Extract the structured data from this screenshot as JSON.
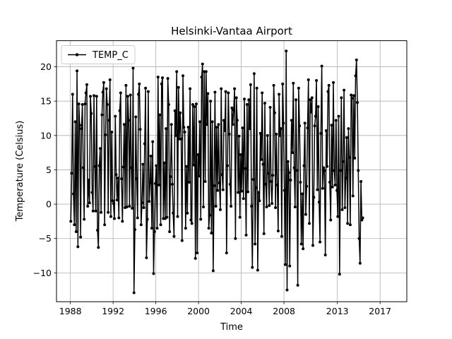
{
  "chart_data": {
    "type": "line",
    "title": "Helsinki-Vantaa Airport",
    "xlabel": "Time",
    "ylabel": "Temperature (Celsius)",
    "xlim": [
      1986.7,
      2019.5
    ],
    "ylim": [
      -14.2,
      23.8
    ],
    "x_ticks": [
      1988,
      1992,
      1996,
      2000,
      2004,
      2008,
      2013,
      2017
    ],
    "x_tick_labels": [
      "1988",
      "1992",
      "1996",
      "2000",
      "2004",
      "2008",
      "2013",
      "2017"
    ],
    "y_ticks": [
      -10,
      -5,
      0,
      5,
      10,
      15,
      20
    ],
    "y_tick_labels": [
      "−10",
      "−5",
      "0",
      "5",
      "10",
      "15",
      "20"
    ],
    "grid": true,
    "legend_position": "upper-left",
    "colors": {
      "series": "#000000",
      "grid": "#b0b0b0"
    },
    "series": [
      {
        "name": "TEMP_C",
        "x_start": 1988.04,
        "x_step": 0.0833333,
        "y": [
          -2.5,
          4.5,
          16.0,
          1.5,
          -3.0,
          12.0,
          -4.0,
          19.4,
          -6.2,
          14.6,
          11.5,
          -4.8,
          11.0,
          14.5,
          5.3,
          -2.2,
          14.6,
          16.2,
          17.4,
          -0.3,
          3.5,
          0.2,
          15.7,
          13.2,
          1.7,
          -1.0,
          15.8,
          5.5,
          -1.0,
          15.7,
          -3.8,
          -6.3,
          5.6,
          8.1,
          -1.2,
          13.0,
          16.3,
          17.7,
          -3.0,
          10.1,
          16.8,
          14.5,
          -1.2,
          12.2,
          18.1,
          -1.8,
          10.5,
          0.5,
          0.1,
          -2.1,
          12.8,
          4.3,
          0.6,
          3.8,
          -2.0,
          13.6,
          16.2,
          3.7,
          -2.5,
          5.4,
          11.6,
          -0.5,
          17.3,
          -0.4,
          15.7,
          12.2,
          -0.3,
          15.9,
          5.3,
          -0.6,
          19.8,
          -12.9,
          -3.7,
          12.7,
          3.7,
          -2.0,
          16.0,
          17.5,
          10.9,
          -3.0,
          0.2,
          5.8,
          -0.5,
          8.8,
          16.9,
          -7.8,
          -2.2,
          16.4,
          0.4,
          3.1,
          7.0,
          -3.5,
          9.1,
          -10.1,
          -4.0,
          3.0,
          5.6,
          -3.5,
          18.5,
          2.8,
          13.0,
          -3.0,
          17.5,
          18.4,
          -2.1,
          6.0,
          -2.1,
          11.0,
          -1.9,
          18.3,
          14.5,
          -4.0,
          4.0,
          11.6,
          2.9,
          -1.3,
          -4.7,
          13.6,
          10.0,
          19.3,
          -1.8,
          17.0,
          9.5,
          13.3,
          9.5,
          -5.3,
          18.7,
          11.2,
          10.5,
          -3.5,
          5.5,
          -1.3,
          11.2,
          3.2,
          16.8,
          -2.3,
          -2.8,
          14.5,
          5.7,
          14.2,
          -7.9,
          14.6,
          -7.1,
          7.2,
          4.1,
          12.0,
          -2.2,
          18.5,
          20.4,
          -0.4,
          19.3,
          3.3,
          19.3,
          11.6,
          16.1,
          -3.5,
          -1.6,
          15.0,
          -4.2,
          12.0,
          -9.7,
          2.7,
          16.3,
          -0.3,
          11.2,
          2.0,
          11.6,
          3.1,
          -0.8,
          16.8,
          4.3,
          2.1,
          12.2,
          10.7,
          16.4,
          -7.1,
          5.6,
          16.2,
          10.2,
          2.9,
          -0.3,
          14.0,
          11.6,
          13.7,
          16.8,
          -5.0,
          15.5,
          12.2,
          1.7,
          9.9,
          -1.9,
          7.2,
          1.9,
          11.1,
          0.8,
          15.3,
          5.2,
          -4.5,
          14.5,
          1.8,
          15.2,
          11.0,
          17.4,
          -0.3,
          -9.2,
          3.6,
          19.0,
          -5.8,
          2.4,
          16.9,
          -9.6,
          1.7,
          0.5,
          10.3,
          6.5,
          16.2,
          5.8,
          -4.3,
          14.7,
          2.9,
          -0.4,
          10.0,
          4.5,
          -0.2,
          14.1,
          3.3,
          0.1,
          4.2,
          17.3,
          13.3,
          -0.5,
          10.2,
          2.8,
          -3.9,
          16.0,
          10.0,
          11.0,
          -4.7,
          17.5,
          11.8,
          2.0,
          -8.8,
          22.3,
          -12.5,
          6.2,
          4.6,
          -9.0,
          3.5,
          12.2,
          7.5,
          17.6,
          5.3,
          -0.4,
          15.2,
          4.9,
          -11.8,
          16.9,
          11.4,
          3.2,
          -5.8,
          1.5,
          -6.5,
          5.6,
          11.8,
          -1.5,
          2.6,
          11.1,
          18.1,
          -2.8,
          15.2,
          13.4,
          15.5,
          -6.0,
          1.0,
          11.4,
          12.8,
          18.0,
          2.1,
          14.2,
          0.3,
          -5.5,
          10.3,
          20.1,
          2.3,
          5.3,
          4.9,
          -7.4,
          10.7,
          5.5,
          16.4,
          17.3,
          3.2,
          -2.3,
          11.5,
          2.5,
          17.7,
          4.9,
          2.8,
          12.2,
          2.0,
          -1.8,
          12.8,
          -10.2,
          4.9,
          15.5,
          -0.8,
          6.2,
          16.6,
          -0.5,
          3.8,
          9.7,
          -2.8,
          11.0,
          6.8,
          -3.0,
          15.9,
          15.4,
          1.2,
          15.8,
          6.7,
          18.7,
          21.0,
          14.8,
          4.9,
          -5.0,
          -8.6,
          3.3,
          -2.3,
          -2.0
        ]
      }
    ]
  }
}
